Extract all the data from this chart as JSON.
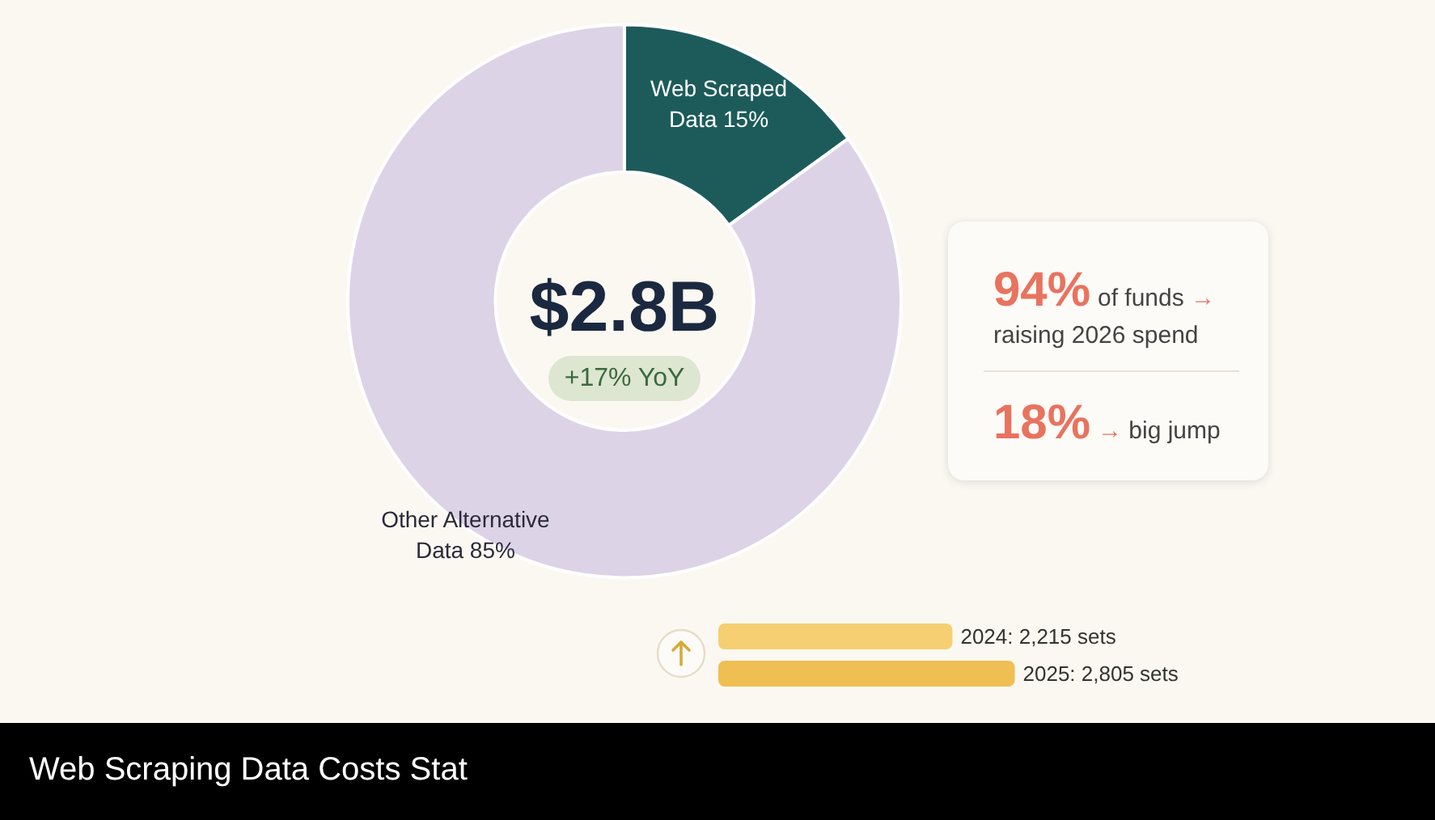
{
  "chart_data": [
    {
      "type": "donut",
      "title": "Web Scraping Data Costs Stat",
      "categories": [
        "Web Scraped Data",
        "Other Alternative Data"
      ],
      "values": [
        15,
        85
      ],
      "colors": [
        "#1d5b5b",
        "#ddd3e6"
      ],
      "value_labels": [
        "15%",
        "85%"
      ],
      "annotations": [
        "$2.8B",
        "+17% YoY"
      ],
      "legend": false
    },
    {
      "type": "other",
      "annotations": [
        "94%",
        "of funds →",
        "raising 2026 spend",
        "18%",
        "→ big jump"
      ]
    },
    {
      "type": "bar",
      "orientation": "horizontal",
      "categories": [
        null,
        null
      ],
      "values": [
        2215,
        2805
      ],
      "colors": [
        "#f6cf72",
        "#f0bf53"
      ],
      "value_labels": [
        "2024: 2,215 sets",
        "2025: 2,805 sets"
      ],
      "legend": false
    }
  ]
}
